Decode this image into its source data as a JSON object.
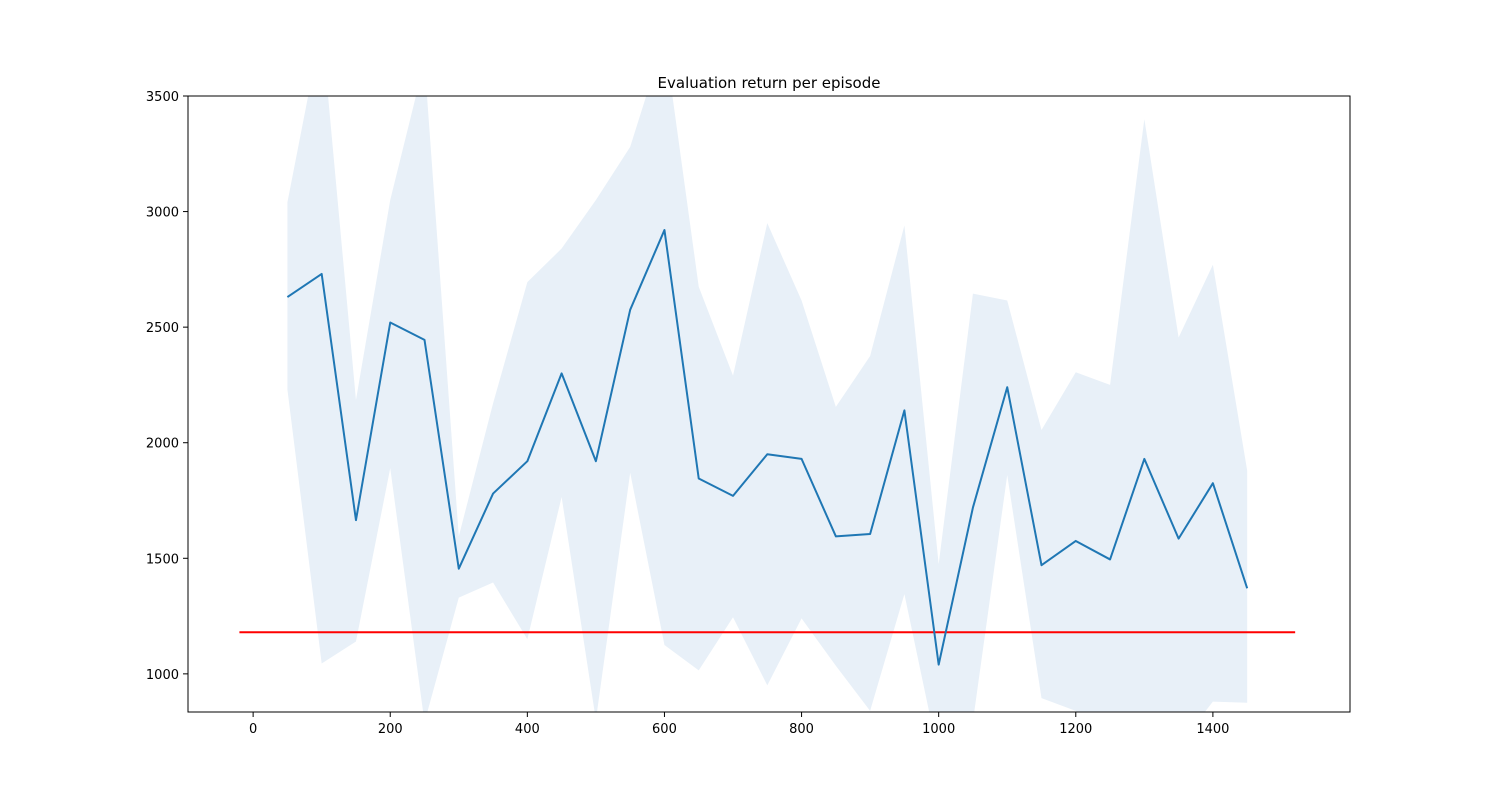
{
  "chart_data": {
    "type": "line",
    "title": "Evaluation return per episode",
    "xlabel": "",
    "ylabel": "",
    "xlim": [
      -95,
      1600
    ],
    "ylim": [
      835,
      3500
    ],
    "xticks": [
      0,
      200,
      400,
      600,
      800,
      1000,
      1200,
      1400
    ],
    "yticks": [
      1000,
      1500,
      2000,
      2500,
      3000,
      3500
    ],
    "grid": false,
    "legend": "none",
    "series": [
      {
        "x": [
          50,
          100,
          150,
          200,
          250,
          300,
          350,
          400,
          450,
          500,
          550,
          600,
          650,
          700,
          750,
          800,
          850,
          900,
          950,
          1000,
          1050,
          1100,
          1150,
          1200,
          1250,
          1300,
          1350,
          1400,
          1450
        ],
        "values": [
          2630,
          2730,
          1665,
          2520,
          2445,
          1455,
          1780,
          1920,
          2300,
          1920,
          2575,
          2920,
          1845,
          1770,
          1950,
          1930,
          1595,
          1605,
          2140,
          1040,
          1720,
          2240,
          1470,
          1575,
          1495,
          1930,
          1585,
          1825,
          1370
        ],
        "band_upper": [
          3040,
          3800,
          2185,
          3050,
          3650,
          1595,
          2170,
          2695,
          2840,
          3050,
          3280,
          3750,
          2675,
          2290,
          2950,
          2615,
          2155,
          2375,
          2940,
          1475,
          2645,
          2615,
          2055,
          2305,
          2250,
          3400,
          2455,
          2770,
          1880
        ],
        "band_lower": [
          2230,
          1045,
          1140,
          1890,
          790,
          1330,
          1395,
          1150,
          1765,
          800,
          1870,
          1125,
          1015,
          1245,
          950,
          1240,
          1035,
          840,
          1345,
          640,
          795,
          1860,
          895,
          840,
          700,
          520,
          690,
          880,
          875
        ],
        "color": "#1f77b4",
        "band_color": "#e8f0f8"
      }
    ],
    "reference_line": {
      "y": 1180,
      "x_range": [
        -20,
        1520
      ],
      "color": "#ff0000"
    }
  }
}
